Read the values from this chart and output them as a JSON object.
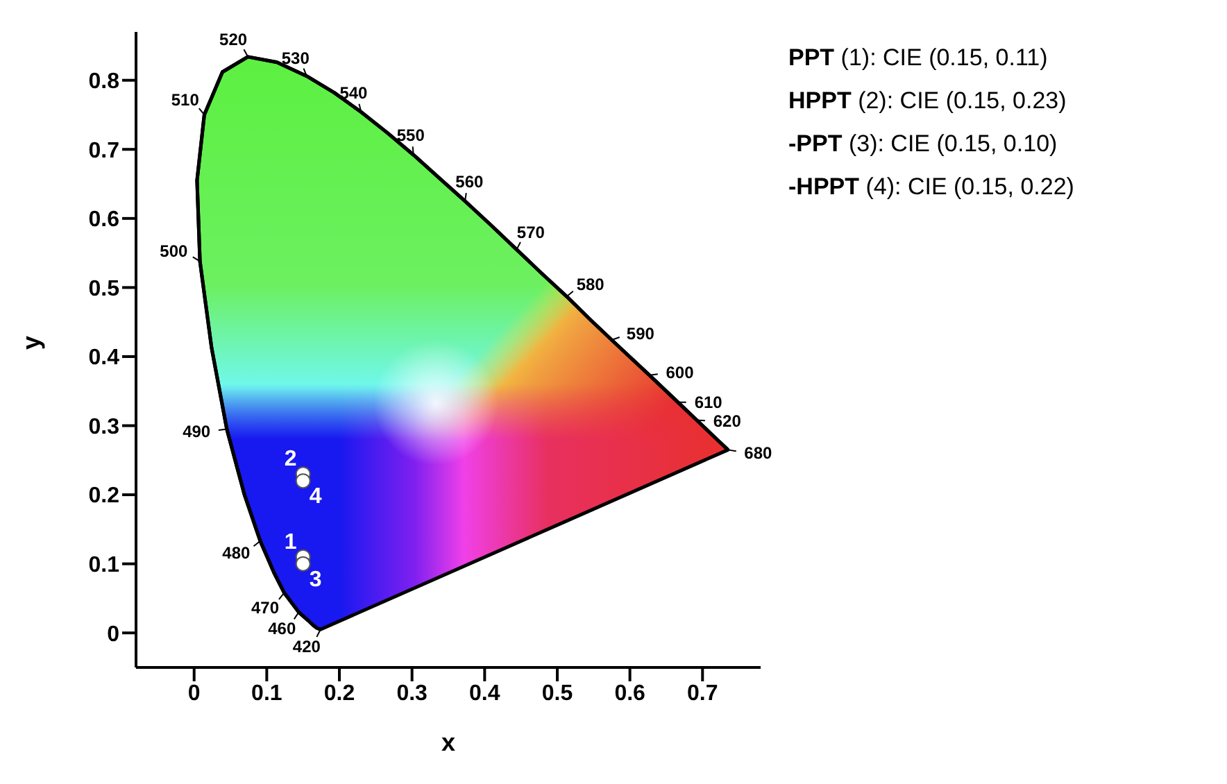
{
  "chart_data": {
    "type": "scatter",
    "xlabel": "x",
    "ylabel": "y",
    "xlim": [
      -0.08,
      0.78
    ],
    "ylim": [
      -0.05,
      0.87
    ],
    "xticks": [
      0,
      0.1,
      0.2,
      0.3,
      0.4,
      0.5,
      0.6,
      0.7
    ],
    "yticks": [
      0,
      0.1,
      0.2,
      0.3,
      0.4,
      0.5,
      0.6,
      0.7,
      0.8
    ],
    "grid": false,
    "legend": false,
    "marker": "circle",
    "series": [
      {
        "type": "line",
        "color": "#000000",
        "marker": "none",
        "line_style": "solid",
        "x": [
          0.174,
          0.169,
          0.164,
          0.157,
          0.144,
          0.124,
          0.11,
          0.091,
          0.069,
          0.045,
          0.024,
          0.008,
          0.004,
          0.014,
          0.039,
          0.074,
          0.114,
          0.155,
          0.193,
          0.23,
          0.266,
          0.302,
          0.337,
          0.373,
          0.409,
          0.444,
          0.479,
          0.513,
          0.545,
          0.575,
          0.627,
          0.666,
          0.692,
          0.719,
          0.73,
          0.735
        ],
        "values": [
          0.005,
          0.007,
          0.011,
          0.018,
          0.03,
          0.058,
          0.087,
          0.133,
          0.201,
          0.295,
          0.413,
          0.538,
          0.655,
          0.75,
          0.812,
          0.834,
          0.826,
          0.806,
          0.782,
          0.754,
          0.724,
          0.692,
          0.659,
          0.625,
          0.59,
          0.555,
          0.52,
          0.487,
          0.454,
          0.424,
          0.373,
          0.334,
          0.308,
          0.281,
          0.27,
          0.265
        ]
      },
      {
        "type": "scatter",
        "color": "#ffffff",
        "x": [
          0.15,
          0.15,
          0.15,
          0.15
        ],
        "values": [
          0.11,
          0.23,
          0.1,
          0.22
        ]
      }
    ],
    "annotations": [
      {
        "text": "420",
        "x": 0.174,
        "y": 0.005
      },
      {
        "text": "460",
        "x": 0.144,
        "y": 0.03
      },
      {
        "text": "470",
        "x": 0.124,
        "y": 0.058
      },
      {
        "text": "480",
        "x": 0.091,
        "y": 0.133
      },
      {
        "text": "490",
        "x": 0.045,
        "y": 0.295
      },
      {
        "text": "500",
        "x": 0.008,
        "y": 0.538
      },
      {
        "text": "510",
        "x": 0.014,
        "y": 0.75
      },
      {
        "text": "520",
        "x": 0.074,
        "y": 0.834
      },
      {
        "text": "530",
        "x": 0.155,
        "y": 0.806
      },
      {
        "text": "540",
        "x": 0.23,
        "y": 0.754
      },
      {
        "text": "550",
        "x": 0.302,
        "y": 0.692
      },
      {
        "text": "560",
        "x": 0.373,
        "y": 0.625
      },
      {
        "text": "570",
        "x": 0.444,
        "y": 0.555
      },
      {
        "text": "580",
        "x": 0.513,
        "y": 0.487
      },
      {
        "text": "590",
        "x": 0.575,
        "y": 0.424
      },
      {
        "text": "600",
        "x": 0.627,
        "y": 0.373
      },
      {
        "text": "610",
        "x": 0.666,
        "y": 0.334
      },
      {
        "text": "620",
        "x": 0.692,
        "y": 0.308
      },
      {
        "text": "680",
        "x": 0.735,
        "y": 0.265
      },
      {
        "text": "1",
        "x": 0.15,
        "y": 0.11
      },
      {
        "text": "2",
        "x": 0.15,
        "y": 0.23
      },
      {
        "text": "3",
        "x": 0.15,
        "y": 0.1
      },
      {
        "text": "4",
        "x": 0.15,
        "y": 0.22
      },
      "PPT (1): CIE (0.15, 0.11)",
      "HPPT (2): CIE (0.15, 0.23)",
      "-PPT (3): CIE (0.15, 0.10)",
      "-HPPT (4): CIE (0.15, 0.22)"
    ]
  }
}
